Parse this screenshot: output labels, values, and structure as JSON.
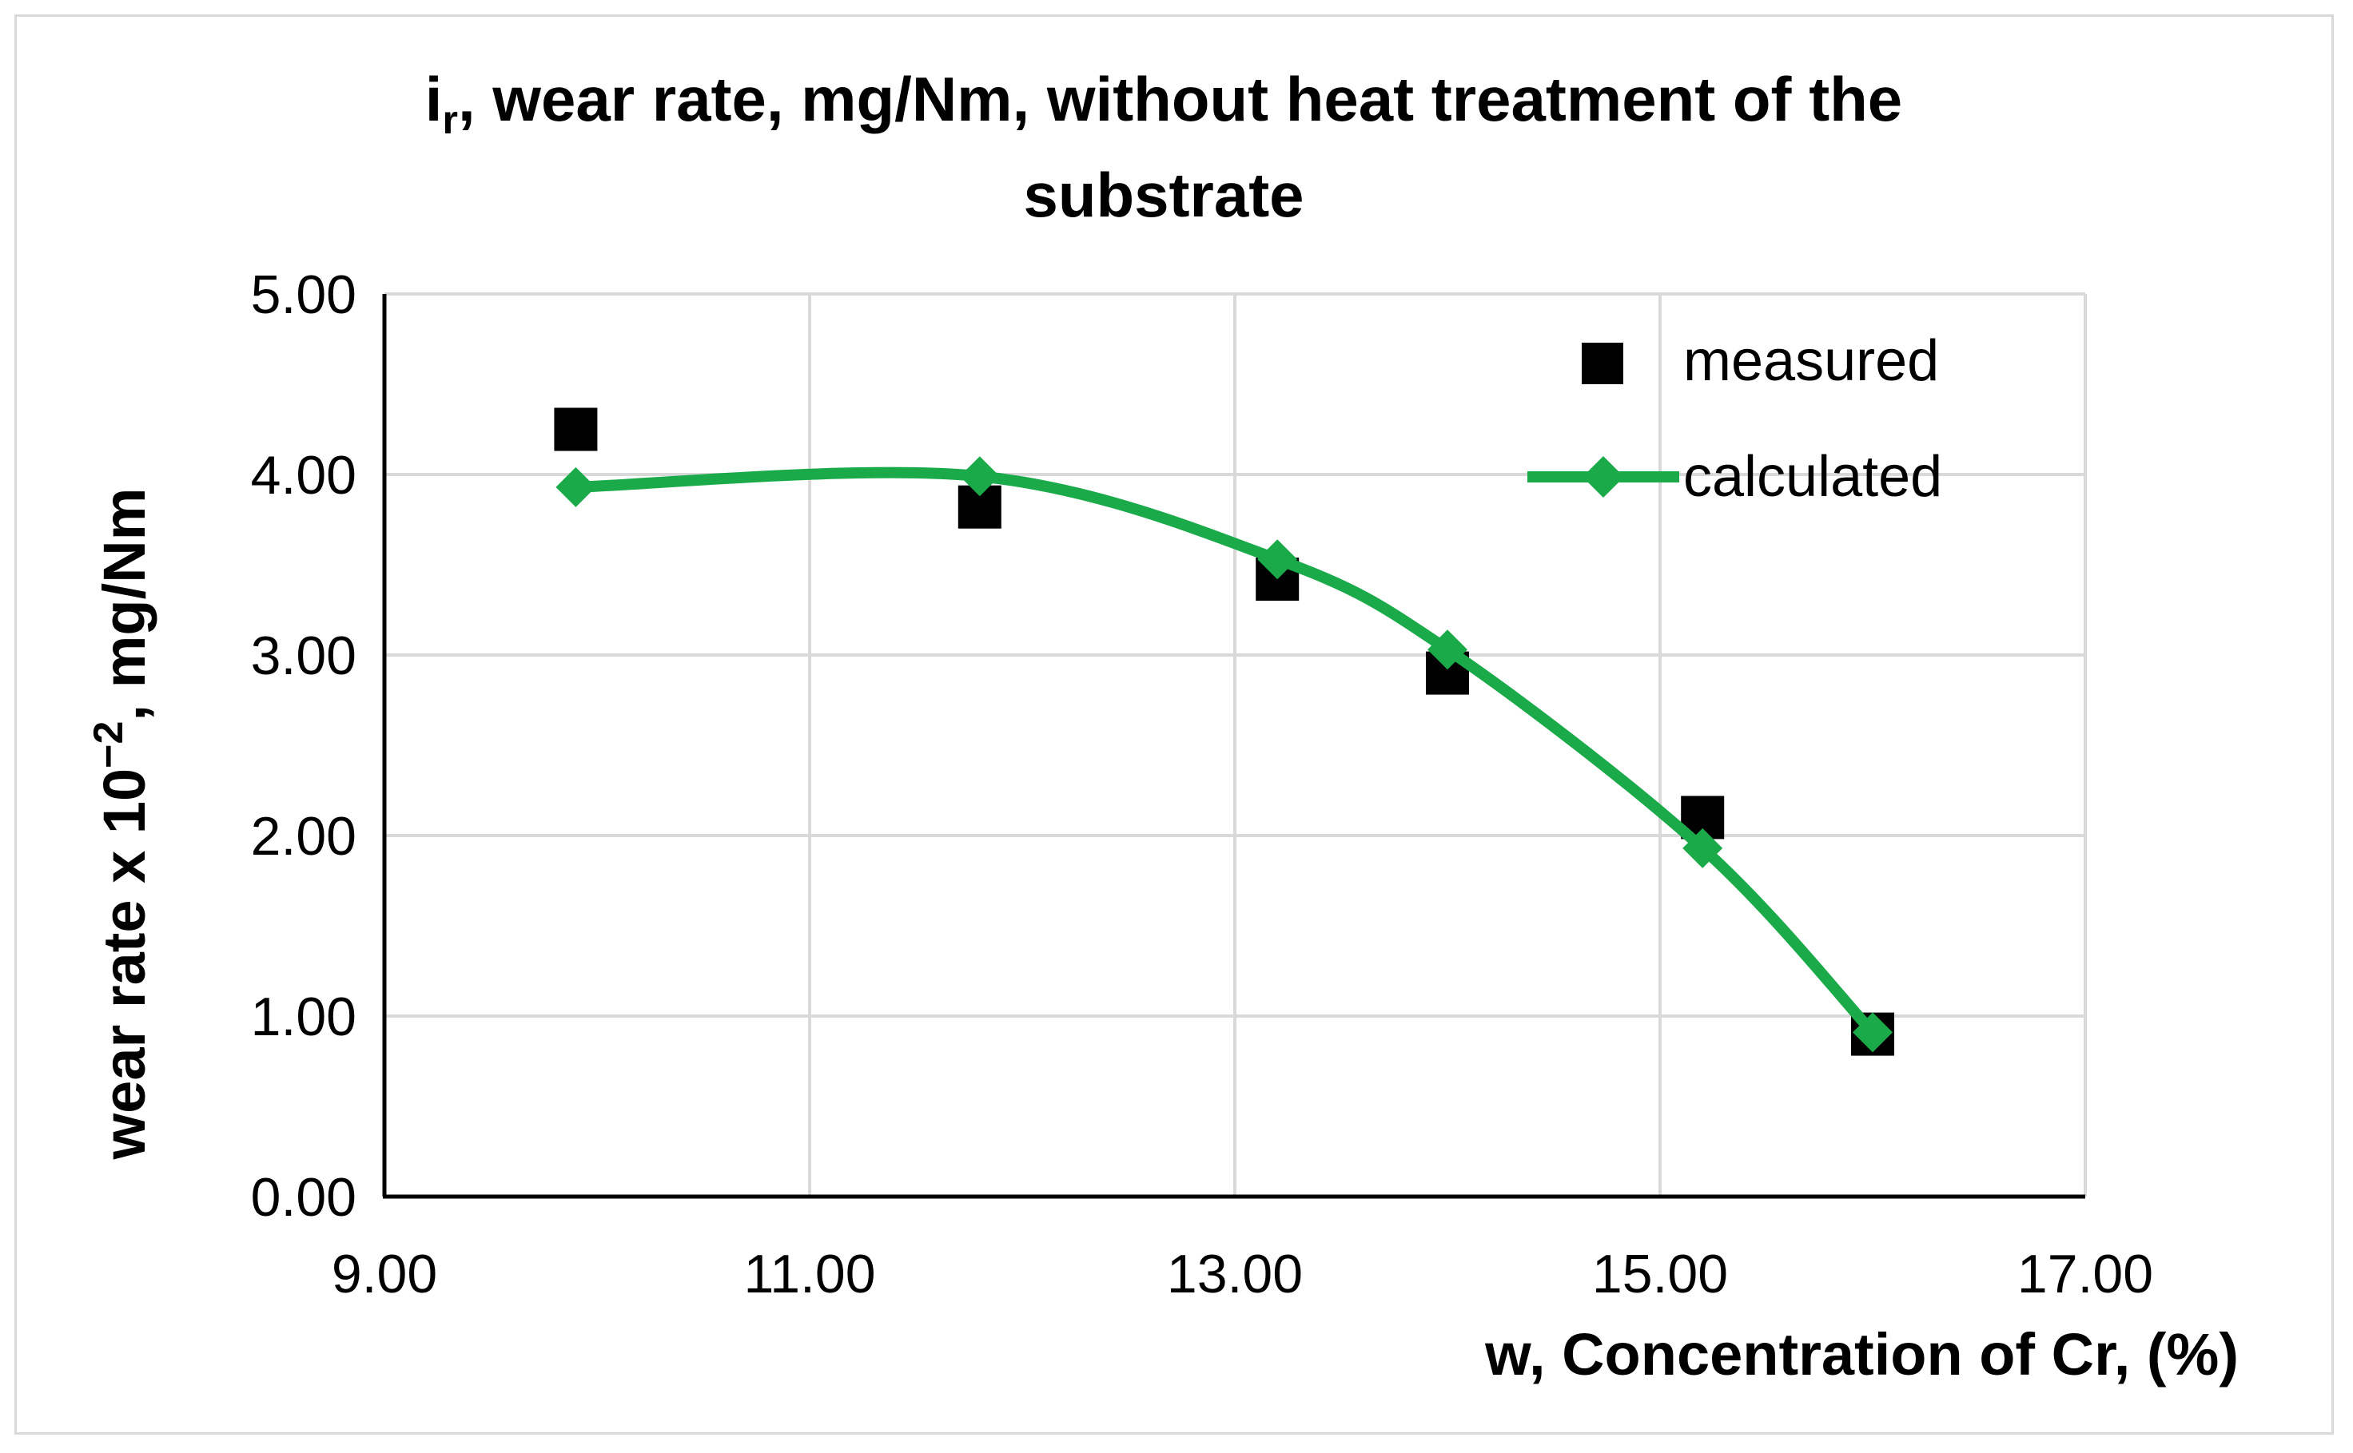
{
  "chart_data": {
    "type": "scatter",
    "title_main": "i",
    "title_sub": "r",
    "title_line1_rest": ", wear rate, mg/Nm, without heat treatment of the",
    "title_line2": "substrate",
    "xlabel": "w, Concentration of Cr, (%)",
    "ylabel_base": "wear rate x 10",
    "ylabel_exp": "−2",
    "ylabel_rest": ", mg/Nm",
    "xlim": [
      9,
      17
    ],
    "ylim": [
      0,
      5
    ],
    "x_ticks": [
      "9.00",
      "11.00",
      "13.00",
      "15.00",
      "17.00"
    ],
    "y_ticks": [
      "0.00",
      "1.00",
      "2.00",
      "3.00",
      "4.00",
      "5.00"
    ],
    "grid": true,
    "legend_position": "top-right",
    "colors": {
      "calculated": "#1aaa4a",
      "measured": "#000000",
      "grid": "#d9d9d9"
    },
    "series": [
      {
        "name": "measured",
        "marker": "square",
        "x": [
          9.9,
          11.8,
          13.2,
          14.0,
          15.2,
          16.0
        ],
        "y": [
          4.25,
          3.82,
          3.42,
          2.9,
          2.1,
          0.9
        ]
      },
      {
        "name": "calculated",
        "marker": "diamond",
        "line": "smooth",
        "x": [
          9.9,
          11.8,
          13.2,
          14.0,
          15.2,
          16.0
        ],
        "y": [
          3.93,
          3.99,
          3.53,
          3.03,
          1.93,
          0.91
        ]
      }
    ]
  }
}
